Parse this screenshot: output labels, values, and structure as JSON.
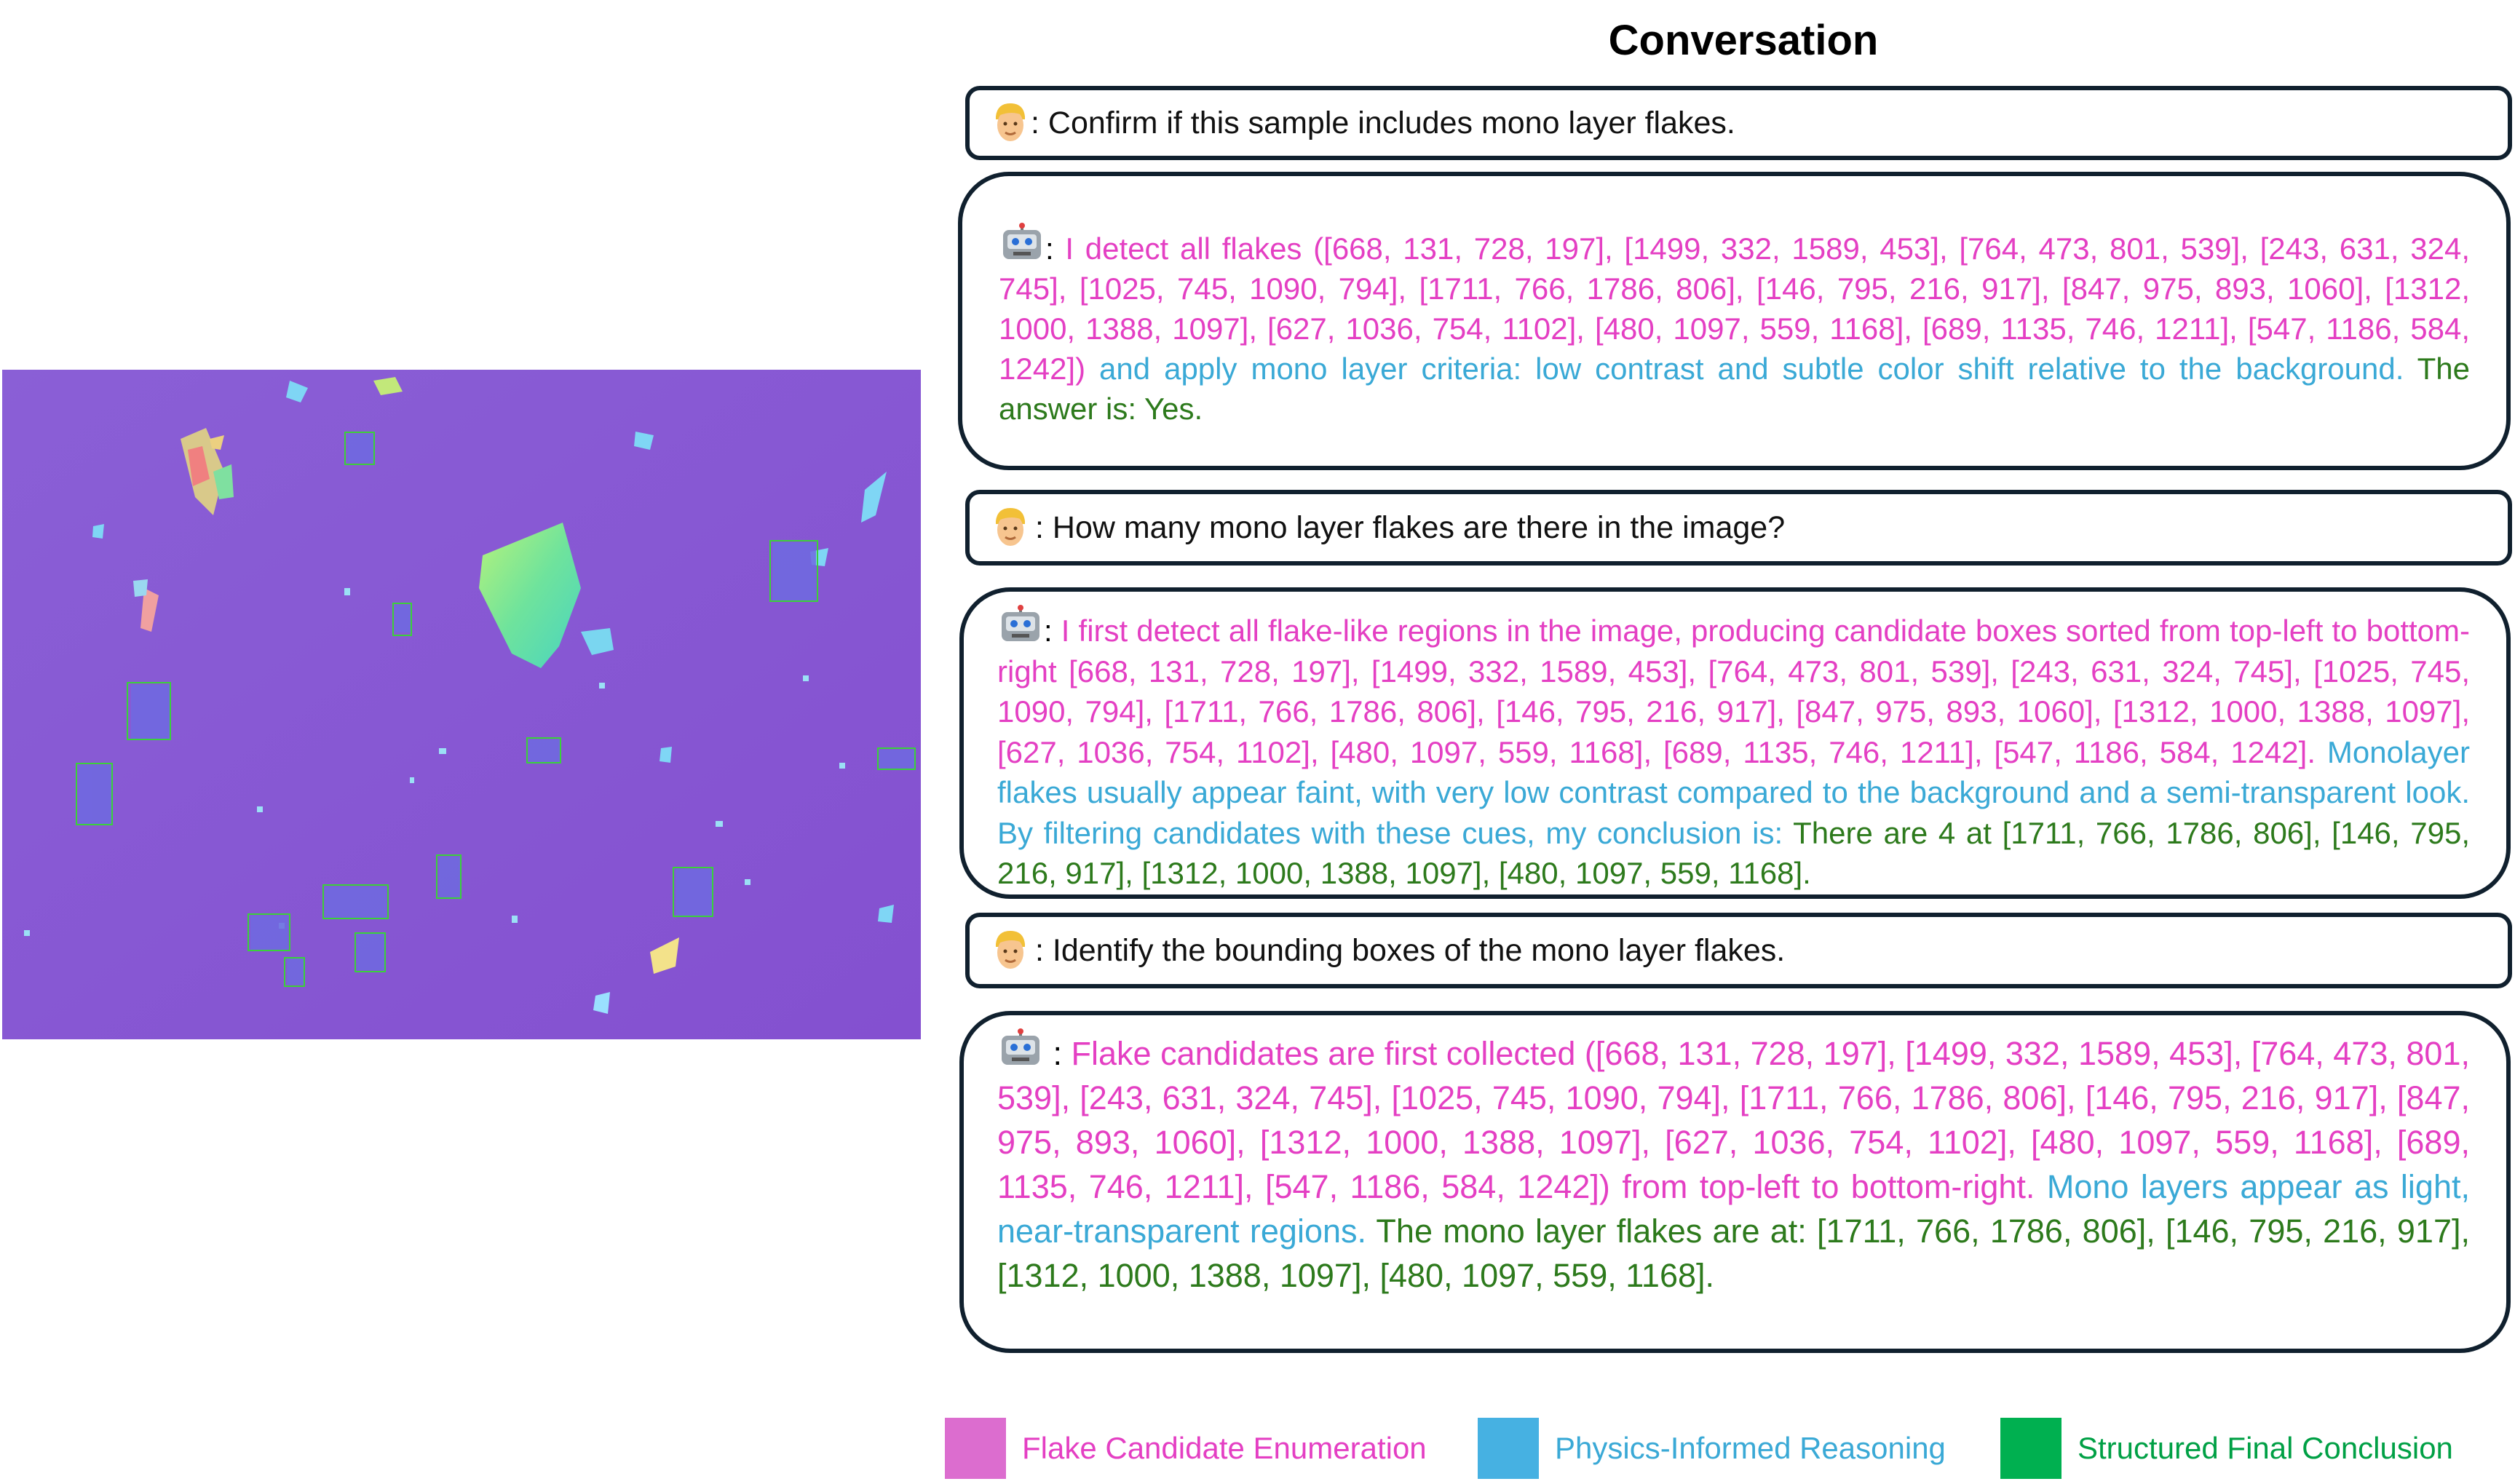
{
  "title": "Conversation",
  "colors": {
    "candidate": "#dc6dcf",
    "reasoning": "#46b1e2",
    "conclusion": "#00b050",
    "candidate_text": "#e43fc3",
    "reasoning_text": "#3aa9d6",
    "conclusion_text": "#2d7a1c"
  },
  "image": {
    "description_icon": "microscope-image",
    "box_color": "#3ad13a"
  },
  "messages": [
    {
      "role": "user",
      "icon": "user-emoji-icon",
      "text": ": Confirm if this sample includes mono layer flakes."
    },
    {
      "role": "bot",
      "icon": "robot-emoji-icon",
      "prefix": ":  ",
      "candidates": "I detect all flakes ([668, 131, 728, 197], [1499, 332, 1589, 453], [764, 473, 801, 539], [243, 631, 324, 745], [1025, 745, 1090, 794], [1711, 766, 1786, 806], [146, 795, 216, 917], [847, 975, 893, 1060], [1312, 1000, 1388, 1097], [627, 1036, 754, 1102], [480, 1097, 559, 1168], [689, 1135, 746, 1211], [547, 1186, 584, 1242])",
      "reasoning": " and apply mono layer criteria: low contrast and subtle color shift relative to the background.",
      "conclusion": " The answer is: Yes."
    },
    {
      "role": "user",
      "icon": "user-emoji-icon",
      "text": ": How many mono layer flakes are there in the image?"
    },
    {
      "role": "bot",
      "icon": "robot-emoji-icon",
      "prefix": ":  ",
      "candidates": "I first detect all flake-like regions in the image, producing candidate boxes sorted from top-left to bottom-right [668, 131, 728, 197], [1499, 332, 1589, 453], [764, 473, 801, 539], [243, 631, 324, 745], [1025, 745, 1090, 794], [1711, 766, 1786, 806], [146, 795, 216, 917], [847, 975, 893, 1060], [1312, 1000, 1388, 1097], [627, 1036, 754, 1102], [480, 1097, 559, 1168], [689, 1135, 746, 1211], [547, 1186, 584, 1242].",
      "reasoning": " Monolayer flakes usually appear faint, with very low contrast compared to the background and a semi-transparent look. By filtering candidates with these cues, my conclusion is:",
      "conclusion": " There are 4 at [1711, 766, 1786, 806], [146, 795, 216, 917], [1312, 1000, 1388, 1097], [480, 1097, 559, 1168]."
    },
    {
      "role": "user",
      "icon": "user-emoji-icon",
      "text": ": Identify the bounding boxes of the mono layer flakes."
    },
    {
      "role": "bot",
      "icon": "robot-emoji-icon",
      "prefix": " : ",
      "candidates": "Flake candidates are first collected ([668, 131, 728, 197], [1499, 332, 1589, 453], [764, 473, 801, 539], [243, 631, 324, 745], [1025, 745, 1090, 794], [1711, 766, 1786, 806], [146, 795, 216, 917], [847, 975, 893, 1060], [1312, 1000, 1388, 1097], [627, 1036, 754, 1102], [480, 1097, 559, 1168], [689, 1135, 746, 1211], [547, 1186, 584, 1242]) from top-left to bottom-right.",
      "reasoning": " Mono layers appear as light, near-transparent regions.",
      "conclusion": " The mono layer flakes are at: [1711, 766, 1786, 806], [146, 795, 216, 917], [1312, 1000, 1388, 1097], [480, 1097, 559, 1168]."
    }
  ],
  "legend": [
    {
      "label": "Flake Candidate Enumeration",
      "color": "#dc6dcf",
      "text_color": "#e43fc3"
    },
    {
      "label": "Physics-Informed Reasoning",
      "color": "#46b1e2",
      "text_color": "#3aa9d6"
    },
    {
      "label": "Structured Final Conclusion",
      "color": "#00b050",
      "text_color": "#00a045"
    }
  ]
}
